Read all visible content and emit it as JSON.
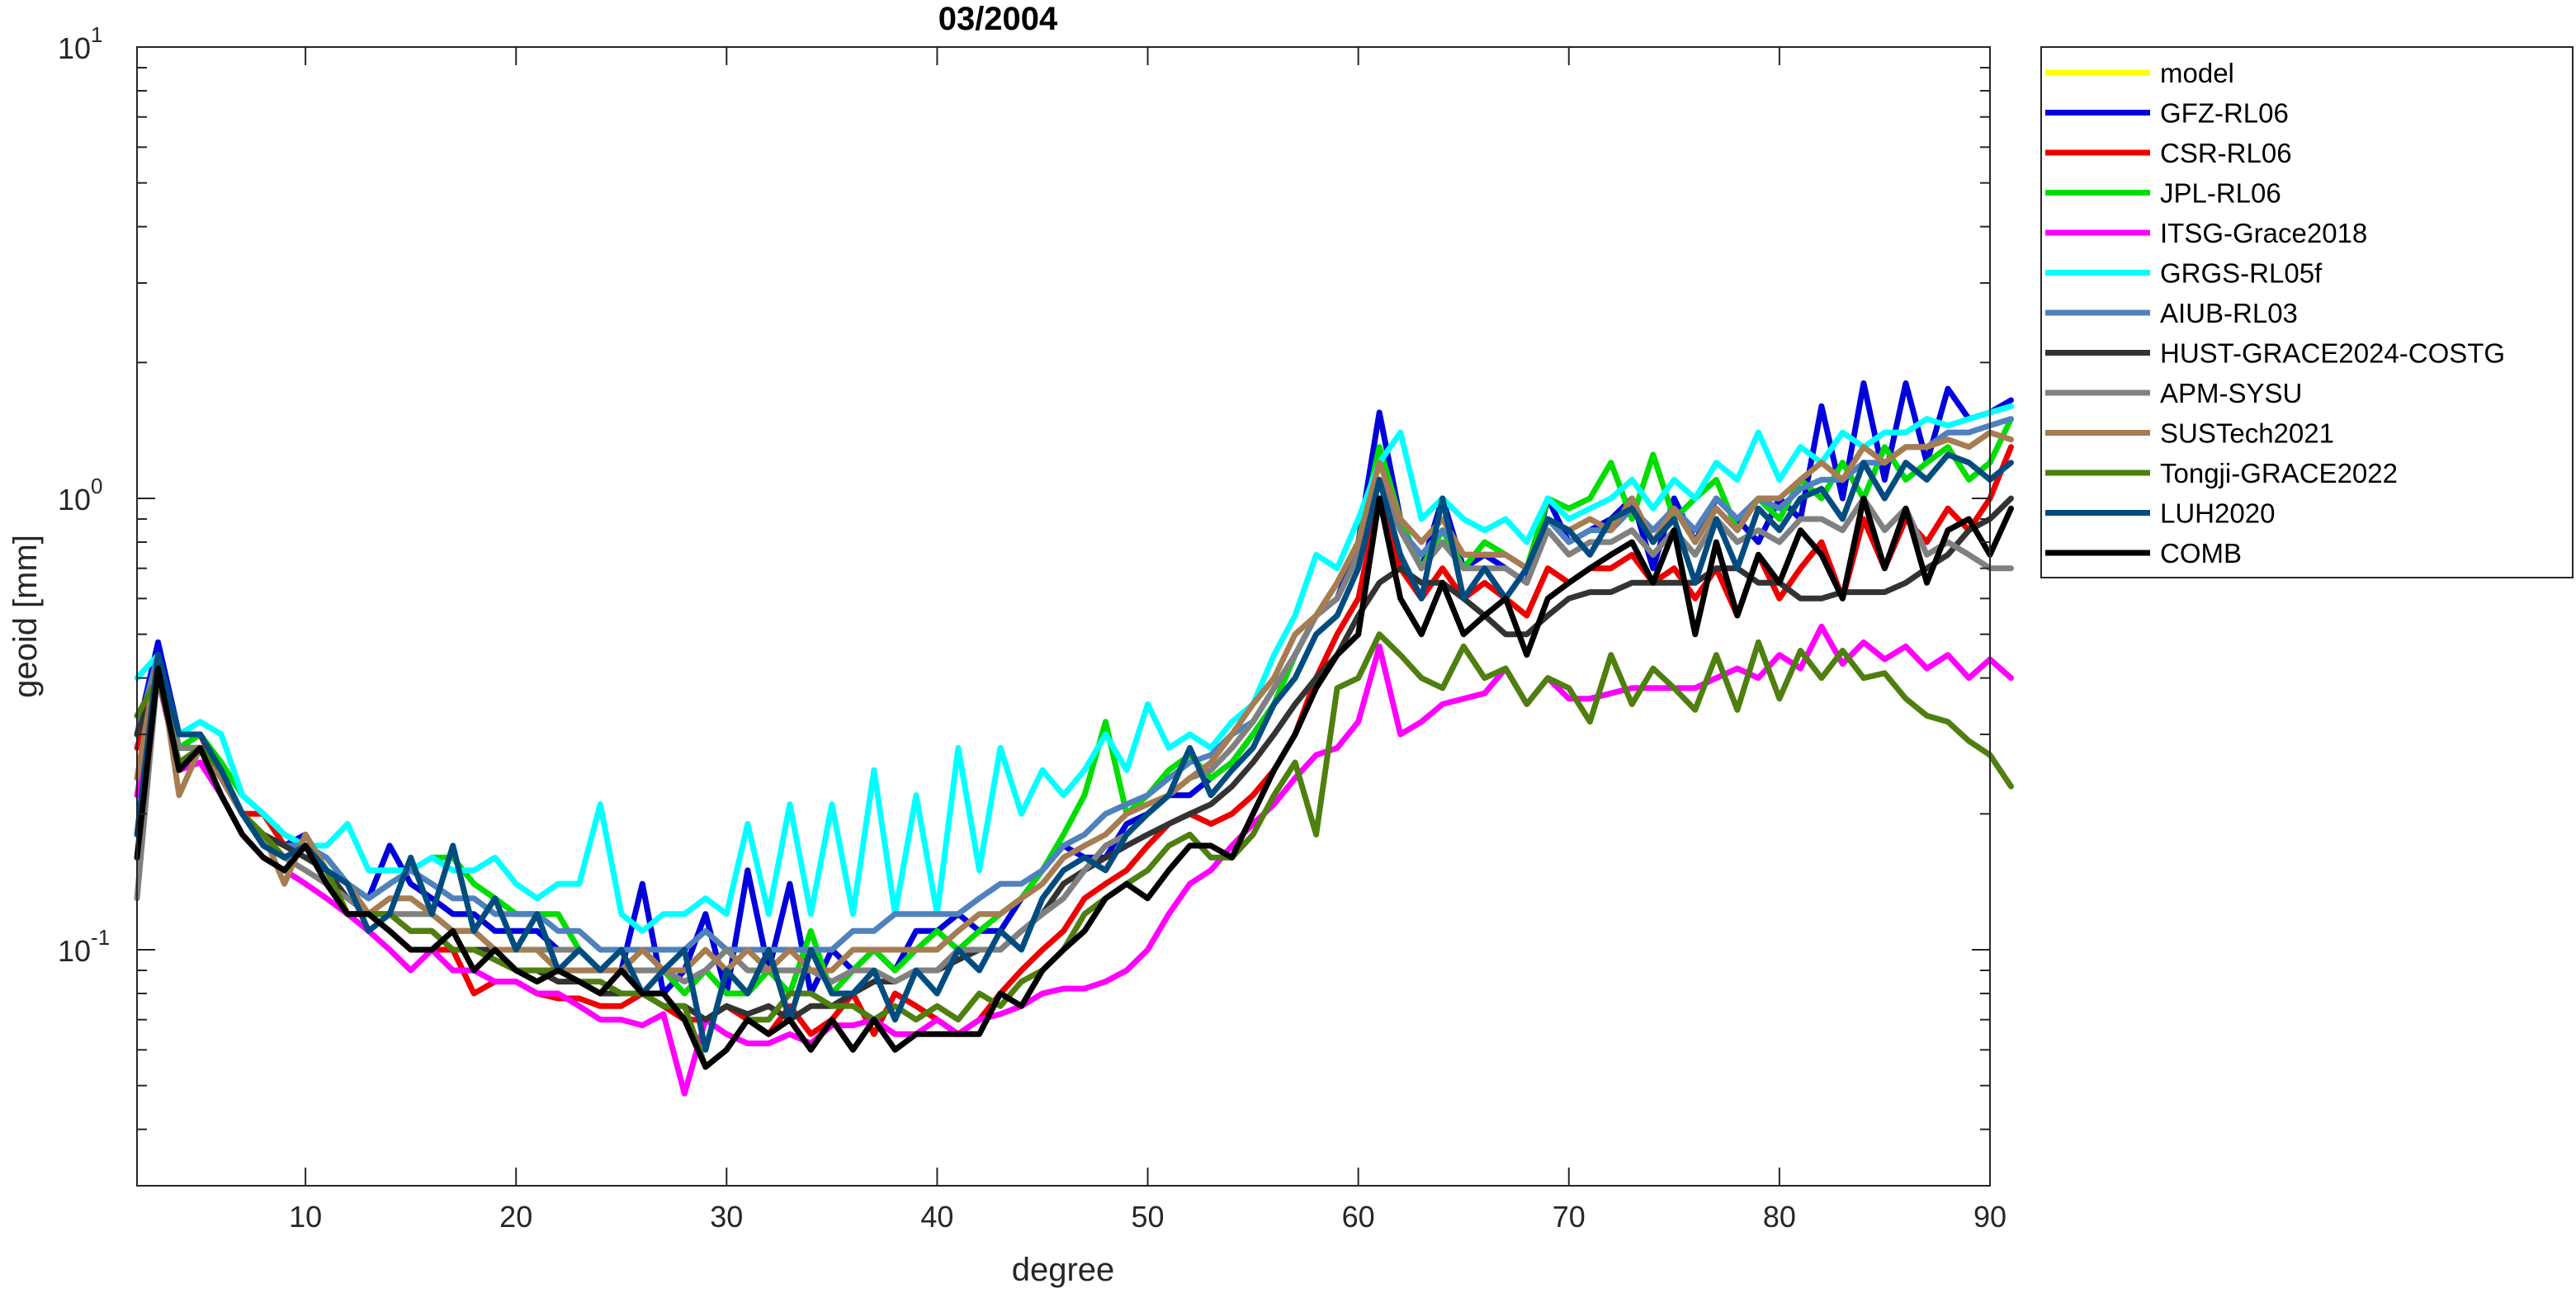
{
  "chart_data": {
    "type": "line",
    "title": "03/2004",
    "xlabel": "degree",
    "ylabel": "geoid [mm]",
    "xlim": [
      2,
      90
    ],
    "ylim": [
      0.03,
      10
    ],
    "yscale": "log",
    "xticks": [
      10,
      20,
      30,
      40,
      50,
      60,
      70,
      80,
      90
    ],
    "yticks": [
      {
        "value": 0.1,
        "base": "10",
        "exp": "-1"
      },
      {
        "value": 1,
        "base": "10",
        "exp": "0"
      },
      {
        "value": 10,
        "base": "10",
        "exp": "1"
      }
    ],
    "legend_position": "outside-right-top",
    "x_start": 2,
    "series": [
      {
        "name": "model",
        "color": "#FFFF00",
        "values": []
      },
      {
        "name": "GFZ-RL06",
        "color": "#0000DD",
        "values": [
          0.3,
          0.48,
          0.3,
          0.3,
          0.25,
          0.2,
          0.18,
          0.17,
          0.18,
          0.15,
          0.14,
          0.13,
          0.17,
          0.14,
          0.13,
          0.12,
          0.12,
          0.11,
          0.11,
          0.11,
          0.1,
          0.1,
          0.09,
          0.09,
          0.14,
          0.08,
          0.09,
          0.12,
          0.08,
          0.15,
          0.09,
          0.14,
          0.08,
          0.1,
          0.09,
          0.1,
          0.09,
          0.11,
          0.11,
          0.12,
          0.11,
          0.11,
          0.13,
          0.15,
          0.17,
          0.16,
          0.16,
          0.19,
          0.2,
          0.22,
          0.22,
          0.24,
          0.26,
          0.3,
          0.35,
          0.45,
          0.55,
          0.6,
          0.8,
          1.55,
          0.9,
          0.7,
          1.0,
          0.7,
          0.75,
          0.7,
          0.65,
          1.0,
          0.8,
          0.85,
          0.9,
          1.0,
          0.7,
          1.0,
          0.8,
          1.0,
          0.9,
          0.8,
          1.0,
          0.9,
          1.6,
          1.0,
          1.8,
          1.1,
          1.8,
          1.2,
          1.75,
          1.5,
          1.55,
          1.65
        ]
      },
      {
        "name": "CSR-RL06",
        "color": "#EE0000",
        "values": [
          0.28,
          0.4,
          0.28,
          0.3,
          0.24,
          0.2,
          0.2,
          0.17,
          0.17,
          0.15,
          0.12,
          0.12,
          0.11,
          0.1,
          0.1,
          0.1,
          0.08,
          0.085,
          0.085,
          0.08,
          0.078,
          0.078,
          0.075,
          0.075,
          0.08,
          0.075,
          0.07,
          0.07,
          0.075,
          0.07,
          0.065,
          0.075,
          0.065,
          0.07,
          0.08,
          0.065,
          0.08,
          0.075,
          0.07,
          0.065,
          0.07,
          0.08,
          0.09,
          0.1,
          0.11,
          0.13,
          0.14,
          0.15,
          0.17,
          0.19,
          0.2,
          0.19,
          0.2,
          0.22,
          0.25,
          0.3,
          0.4,
          0.5,
          0.6,
          1.0,
          0.7,
          0.6,
          0.7,
          0.6,
          0.65,
          0.6,
          0.55,
          0.7,
          0.65,
          0.7,
          0.7,
          0.75,
          0.65,
          0.7,
          0.6,
          0.7,
          0.55,
          0.75,
          0.6,
          0.7,
          0.8,
          0.6,
          0.9,
          0.7,
          0.9,
          0.8,
          0.95,
          0.85,
          1.0,
          1.3
        ]
      },
      {
        "name": "JPL-RL06",
        "color": "#00DD00",
        "values": [
          0.3,
          0.45,
          0.28,
          0.3,
          0.26,
          0.22,
          0.2,
          0.18,
          0.17,
          0.16,
          0.14,
          0.13,
          0.14,
          0.15,
          0.16,
          0.16,
          0.14,
          0.13,
          0.12,
          0.12,
          0.12,
          0.1,
          0.09,
          0.09,
          0.1,
          0.09,
          0.08,
          0.09,
          0.08,
          0.08,
          0.09,
          0.08,
          0.11,
          0.08,
          0.09,
          0.1,
          0.09,
          0.1,
          0.11,
          0.1,
          0.11,
          0.12,
          0.13,
          0.15,
          0.18,
          0.22,
          0.32,
          0.2,
          0.22,
          0.25,
          0.27,
          0.24,
          0.26,
          0.3,
          0.35,
          0.45,
          0.55,
          0.65,
          0.8,
          1.3,
          0.9,
          0.7,
          0.85,
          0.7,
          0.8,
          0.75,
          0.7,
          1.0,
          0.95,
          1.0,
          1.2,
          0.9,
          1.25,
          0.9,
          1.0,
          1.1,
          0.85,
          1.0,
          0.9,
          1.1,
          1.0,
          1.2,
          1.0,
          1.3,
          1.1,
          1.2,
          1.3,
          1.1,
          1.2,
          1.5
        ]
      },
      {
        "name": "ITSG-Grace2018",
        "color": "#FF00FF",
        "values": [
          0.22,
          0.4,
          0.25,
          0.26,
          0.22,
          0.18,
          0.16,
          0.15,
          0.14,
          0.13,
          0.12,
          0.11,
          0.1,
          0.09,
          0.1,
          0.09,
          0.09,
          0.085,
          0.085,
          0.08,
          0.08,
          0.075,
          0.07,
          0.07,
          0.068,
          0.072,
          0.048,
          0.07,
          0.065,
          0.062,
          0.062,
          0.065,
          0.062,
          0.068,
          0.068,
          0.07,
          0.065,
          0.065,
          0.07,
          0.065,
          0.07,
          0.072,
          0.075,
          0.08,
          0.082,
          0.082,
          0.085,
          0.09,
          0.1,
          0.12,
          0.14,
          0.15,
          0.17,
          0.19,
          0.21,
          0.24,
          0.27,
          0.28,
          0.32,
          0.47,
          0.3,
          0.32,
          0.35,
          0.36,
          0.37,
          0.42,
          0.35,
          0.4,
          0.36,
          0.36,
          0.37,
          0.38,
          0.38,
          0.38,
          0.38,
          0.4,
          0.42,
          0.4,
          0.45,
          0.42,
          0.52,
          0.43,
          0.48,
          0.44,
          0.47,
          0.42,
          0.45,
          0.4,
          0.44,
          0.4
        ]
      },
      {
        "name": "GRGS-RL05f",
        "color": "#00FFFF",
        "values": [
          0.4,
          0.45,
          0.3,
          0.32,
          0.3,
          0.22,
          0.2,
          0.18,
          0.17,
          0.17,
          0.19,
          0.15,
          0.15,
          0.15,
          0.16,
          0.15,
          0.15,
          0.16,
          0.14,
          0.13,
          0.14,
          0.14,
          0.21,
          0.12,
          0.11,
          0.12,
          0.12,
          0.13,
          0.12,
          0.19,
          0.12,
          0.21,
          0.12,
          0.21,
          0.12,
          0.25,
          0.12,
          0.22,
          0.12,
          0.28,
          0.15,
          0.28,
          0.2,
          0.25,
          0.22,
          0.25,
          0.3,
          0.25,
          0.35,
          0.28,
          0.3,
          0.28,
          0.32,
          0.35,
          0.45,
          0.55,
          0.75,
          0.7,
          0.9,
          1.2,
          1.4,
          0.9,
          1.0,
          0.9,
          0.85,
          0.9,
          0.8,
          1.0,
          0.9,
          0.95,
          1.0,
          1.1,
          0.95,
          1.1,
          1.0,
          1.2,
          1.1,
          1.4,
          1.1,
          1.3,
          1.2,
          1.4,
          1.3,
          1.4,
          1.4,
          1.5,
          1.45,
          1.5,
          1.55,
          1.6
        ]
      },
      {
        "name": "AIUB-RL03",
        "color": "#4F81BD",
        "values": [
          0.3,
          0.45,
          0.28,
          0.28,
          0.24,
          0.2,
          0.18,
          0.17,
          0.17,
          0.16,
          0.14,
          0.13,
          0.14,
          0.15,
          0.14,
          0.13,
          0.13,
          0.12,
          0.12,
          0.12,
          0.11,
          0.11,
          0.1,
          0.1,
          0.1,
          0.1,
          0.1,
          0.11,
          0.1,
          0.1,
          0.1,
          0.1,
          0.1,
          0.1,
          0.11,
          0.11,
          0.12,
          0.12,
          0.12,
          0.12,
          0.13,
          0.14,
          0.14,
          0.15,
          0.17,
          0.18,
          0.2,
          0.21,
          0.22,
          0.24,
          0.26,
          0.27,
          0.3,
          0.32,
          0.38,
          0.45,
          0.55,
          0.6,
          0.75,
          1.1,
          0.85,
          0.75,
          0.85,
          0.75,
          0.75,
          0.75,
          0.7,
          0.9,
          0.8,
          0.85,
          0.85,
          0.95,
          0.85,
          0.95,
          0.85,
          1.0,
          0.9,
          1.0,
          0.95,
          1.05,
          1.1,
          1.1,
          1.2,
          1.2,
          1.3,
          1.3,
          1.4,
          1.4,
          1.45,
          1.5
        ]
      },
      {
        "name": "HUST-GRACE2024-COSTG",
        "color": "#333333",
        "values": [
          0.3,
          0.4,
          0.28,
          0.28,
          0.24,
          0.2,
          0.18,
          0.17,
          0.16,
          0.15,
          0.13,
          0.12,
          0.12,
          0.11,
          0.11,
          0.1,
          0.1,
          0.1,
          0.09,
          0.09,
          0.085,
          0.085,
          0.08,
          0.08,
          0.08,
          0.075,
          0.075,
          0.07,
          0.075,
          0.072,
          0.075,
          0.07,
          0.075,
          0.075,
          0.08,
          0.085,
          0.085,
          0.09,
          0.09,
          0.095,
          0.1,
          0.1,
          0.11,
          0.12,
          0.14,
          0.15,
          0.16,
          0.17,
          0.18,
          0.19,
          0.2,
          0.21,
          0.23,
          0.26,
          0.3,
          0.35,
          0.4,
          0.45,
          0.55,
          0.65,
          0.7,
          0.65,
          0.65,
          0.6,
          0.55,
          0.5,
          0.5,
          0.55,
          0.6,
          0.62,
          0.62,
          0.65,
          0.65,
          0.65,
          0.65,
          0.7,
          0.7,
          0.65,
          0.65,
          0.6,
          0.6,
          0.62,
          0.62,
          0.62,
          0.65,
          0.7,
          0.75,
          0.85,
          0.9,
          1.0
        ]
      },
      {
        "name": "APM-SYSU",
        "color": "#808080",
        "values": [
          0.13,
          0.42,
          0.28,
          0.28,
          0.24,
          0.2,
          0.17,
          0.16,
          0.15,
          0.14,
          0.13,
          0.12,
          0.12,
          0.12,
          0.12,
          0.11,
          0.11,
          0.1,
          0.1,
          0.1,
          0.1,
          0.1,
          0.09,
          0.09,
          0.09,
          0.09,
          0.085,
          0.09,
          0.1,
          0.09,
          0.09,
          0.09,
          0.09,
          0.085,
          0.09,
          0.09,
          0.085,
          0.09,
          0.09,
          0.1,
          0.1,
          0.1,
          0.11,
          0.12,
          0.13,
          0.15,
          0.17,
          0.18,
          0.2,
          0.22,
          0.24,
          0.25,
          0.28,
          0.32,
          0.38,
          0.45,
          0.55,
          0.6,
          0.75,
          1.1,
          0.85,
          0.7,
          0.8,
          0.7,
          0.7,
          0.7,
          0.65,
          0.85,
          0.75,
          0.8,
          0.8,
          0.85,
          0.75,
          0.85,
          0.75,
          0.9,
          0.8,
          0.85,
          0.8,
          0.9,
          0.9,
          0.85,
          1.0,
          0.85,
          0.95,
          0.75,
          0.8,
          0.75,
          0.7,
          0.7
        ]
      },
      {
        "name": "SUSTech2021",
        "color": "#A67C52",
        "values": [
          0.24,
          0.45,
          0.22,
          0.28,
          0.24,
          0.2,
          0.18,
          0.14,
          0.18,
          0.15,
          0.14,
          0.12,
          0.13,
          0.13,
          0.12,
          0.11,
          0.11,
          0.1,
          0.1,
          0.1,
          0.09,
          0.09,
          0.09,
          0.09,
          0.1,
          0.09,
          0.09,
          0.1,
          0.09,
          0.1,
          0.09,
          0.1,
          0.09,
          0.09,
          0.1,
          0.1,
          0.1,
          0.1,
          0.1,
          0.11,
          0.12,
          0.12,
          0.13,
          0.14,
          0.16,
          0.17,
          0.18,
          0.2,
          0.21,
          0.22,
          0.24,
          0.26,
          0.3,
          0.35,
          0.4,
          0.5,
          0.55,
          0.65,
          0.8,
          1.2,
          0.9,
          0.8,
          0.9,
          0.75,
          0.75,
          0.75,
          0.7,
          0.9,
          0.85,
          0.9,
          0.85,
          1.0,
          0.8,
          0.95,
          0.8,
          0.95,
          0.85,
          1.0,
          1.0,
          1.1,
          1.2,
          1.1,
          1.3,
          1.2,
          1.3,
          1.3,
          1.35,
          1.3,
          1.4,
          1.35
        ]
      },
      {
        "name": "Tongji-GRACE2022",
        "color": "#4F7F0F",
        "values": [
          0.33,
          0.4,
          0.26,
          0.28,
          0.25,
          0.2,
          0.18,
          0.16,
          0.17,
          0.15,
          0.12,
          0.12,
          0.12,
          0.11,
          0.11,
          0.1,
          0.1,
          0.095,
          0.09,
          0.09,
          0.09,
          0.085,
          0.085,
          0.08,
          0.08,
          0.075,
          0.075,
          0.055,
          0.06,
          0.07,
          0.07,
          0.08,
          0.08,
          0.075,
          0.075,
          0.07,
          0.075,
          0.07,
          0.075,
          0.07,
          0.08,
          0.075,
          0.085,
          0.09,
          0.1,
          0.12,
          0.13,
          0.14,
          0.15,
          0.17,
          0.18,
          0.16,
          0.16,
          0.18,
          0.22,
          0.26,
          0.18,
          0.38,
          0.4,
          0.5,
          0.45,
          0.4,
          0.38,
          0.47,
          0.4,
          0.42,
          0.35,
          0.4,
          0.38,
          0.32,
          0.45,
          0.35,
          0.42,
          0.38,
          0.34,
          0.45,
          0.34,
          0.48,
          0.36,
          0.46,
          0.4,
          0.46,
          0.4,
          0.41,
          0.36,
          0.33,
          0.32,
          0.29,
          0.27,
          0.23
        ]
      },
      {
        "name": "LUH2020",
        "color": "#004C80",
        "values": [
          0.18,
          0.45,
          0.3,
          0.3,
          0.25,
          0.2,
          0.17,
          0.16,
          0.17,
          0.15,
          0.14,
          0.11,
          0.12,
          0.16,
          0.12,
          0.17,
          0.11,
          0.13,
          0.1,
          0.12,
          0.09,
          0.1,
          0.09,
          0.1,
          0.08,
          0.09,
          0.1,
          0.06,
          0.09,
          0.08,
          0.1,
          0.07,
          0.1,
          0.08,
          0.08,
          0.09,
          0.07,
          0.09,
          0.08,
          0.1,
          0.09,
          0.11,
          0.1,
          0.13,
          0.15,
          0.16,
          0.15,
          0.18,
          0.2,
          0.22,
          0.28,
          0.22,
          0.25,
          0.28,
          0.35,
          0.4,
          0.5,
          0.55,
          0.7,
          1.1,
          0.75,
          0.6,
          1.0,
          0.6,
          0.7,
          0.6,
          0.7,
          0.9,
          0.85,
          0.75,
          0.9,
          0.95,
          0.8,
          0.9,
          0.65,
          0.9,
          0.7,
          0.95,
          0.85,
          1.0,
          1.05,
          0.9,
          1.2,
          1.0,
          1.2,
          1.1,
          1.25,
          1.2,
          1.1,
          1.2
        ]
      },
      {
        "name": "COMB",
        "color": "#000000",
        "values": [
          0.16,
          0.42,
          0.25,
          0.28,
          0.22,
          0.18,
          0.16,
          0.15,
          0.17,
          0.14,
          0.12,
          0.12,
          0.11,
          0.1,
          0.1,
          0.11,
          0.09,
          0.1,
          0.09,
          0.085,
          0.09,
          0.085,
          0.08,
          0.09,
          0.08,
          0.08,
          0.07,
          0.055,
          0.06,
          0.07,
          0.065,
          0.07,
          0.06,
          0.07,
          0.06,
          0.07,
          0.06,
          0.065,
          0.065,
          0.065,
          0.065,
          0.08,
          0.075,
          0.09,
          0.1,
          0.11,
          0.13,
          0.14,
          0.13,
          0.15,
          0.17,
          0.17,
          0.16,
          0.2,
          0.25,
          0.3,
          0.38,
          0.45,
          0.5,
          1.0,
          0.6,
          0.5,
          0.65,
          0.5,
          0.55,
          0.6,
          0.45,
          0.6,
          0.65,
          0.7,
          0.75,
          0.8,
          0.65,
          0.85,
          0.5,
          0.8,
          0.55,
          0.75,
          0.65,
          0.85,
          0.75,
          0.6,
          1.0,
          0.7,
          0.95,
          0.65,
          0.85,
          0.9,
          0.75,
          0.95
        ]
      }
    ]
  }
}
